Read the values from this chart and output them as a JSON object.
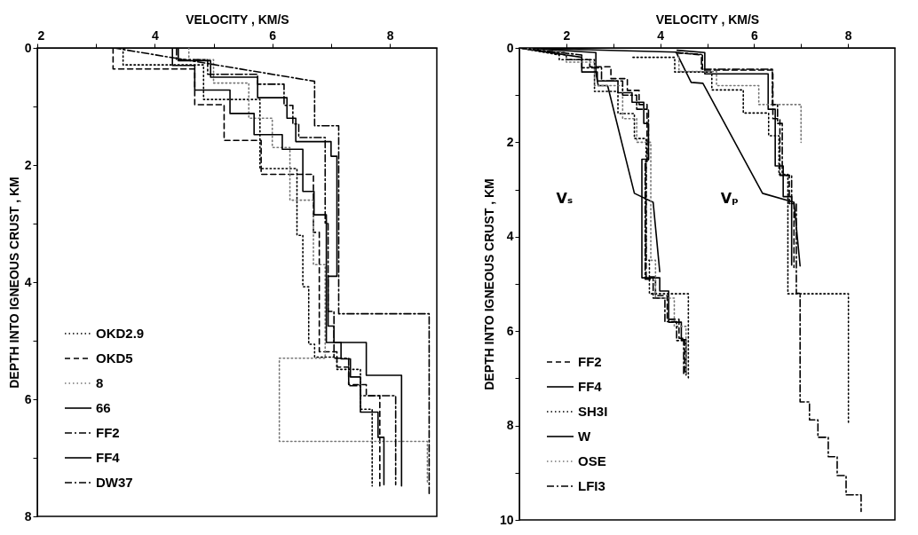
{
  "chart_data": [
    {
      "type": "line",
      "xlabel": "VELOCITY , KM/S",
      "ylabel": "DEPTH INTO IGNEOUS CRUST , KM",
      "xlim": [
        2,
        8.8
      ],
      "ylim": [
        8,
        0
      ],
      "xticks": [
        2,
        {
          "value": 3,
          "label": null
        },
        4,
        {
          "value": 5,
          "label": null
        },
        6,
        {
          "value": 7,
          "label": null
        },
        8
      ],
      "yticks": [
        0,
        {
          "value": 1,
          "label": null
        },
        2,
        {
          "value": 3,
          "label": null
        },
        4,
        {
          "value": 5,
          "label": null
        },
        6,
        {
          "value": 7,
          "label": null
        },
        8
      ],
      "legend": "bottom left",
      "series": [
        {
          "name": "OKD2.9",
          "color": "#000000",
          "line_style": "dotted",
          "x": [
            3.46,
            3.46,
            4.83,
            4.83,
            5.79,
            5.79,
            6.42,
            6.42,
            6.52,
            6.52,
            6.62,
            6.62,
            6.72,
            6.72,
            7.1,
            7.1,
            7.5,
            7.5,
            7.7,
            7.7
          ],
          "values": [
            0,
            0.29,
            0.29,
            0.88,
            0.88,
            2.06,
            2.06,
            3.2,
            3.2,
            4.08,
            4.08,
            5.06,
            5.06,
            5.28,
            5.28,
            5.49,
            5.49,
            6.17,
            6.17,
            7.48
          ]
        },
        {
          "name": "OKD5",
          "color": "#000000",
          "line_style": "dashed",
          "x": [
            3.29,
            3.29,
            4.68,
            4.68,
            5.18,
            5.18,
            5.81,
            5.81,
            6.7,
            6.7,
            6.8,
            6.8,
            7.1,
            7.1,
            7.3,
            7.3,
            7.6,
            7.6,
            7.83,
            7.83
          ],
          "values": [
            0,
            0.36,
            0.36,
            0.97,
            0.97,
            1.58,
            1.58,
            2.16,
            2.16,
            3.15,
            3.15,
            5.19,
            5.19,
            5.45,
            5.45,
            5.75,
            5.75,
            5.94,
            5.94,
            7.48
          ]
        },
        {
          "name": "8",
          "color": "#777777",
          "line_style": "dotted",
          "x": [
            4.58,
            4.58,
            5.0,
            5.0,
            5.6,
            5.6,
            6.0,
            6.0,
            6.3,
            6.3,
            6.7,
            6.7,
            6.9,
            6.9,
            6.12,
            6.12,
            8.64,
            8.64
          ],
          "values": [
            0,
            0.2,
            0.2,
            0.6,
            0.6,
            1.2,
            1.2,
            1.7,
            1.7,
            2.6,
            2.6,
            3.7,
            3.7,
            5.3,
            5.3,
            6.72,
            6.72,
            7.43
          ]
        },
        {
          "name": "66",
          "color": "#000000",
          "line_style": "solid",
          "x": [
            4.3,
            4.3,
            4.68,
            4.68,
            5.28,
            5.28,
            5.69,
            5.69,
            6.17,
            6.17,
            6.52,
            6.52,
            6.71,
            6.71,
            6.92,
            6.92,
            7.6,
            7.6,
            8.2,
            8.2
          ],
          "values": [
            0,
            0.3,
            0.3,
            0.72,
            0.72,
            1.12,
            1.12,
            1.48,
            1.48,
            1.73,
            1.73,
            2.45,
            2.45,
            2.85,
            2.85,
            5.03,
            5.03,
            5.59,
            5.59,
            7.48
          ]
        },
        {
          "name": "FF2",
          "color": "#000000",
          "line_style": "dashdot",
          "x": [
            4.37,
            4.37,
            4.9,
            4.9,
            5.75,
            5.75,
            6.2,
            6.2,
            6.35,
            6.35,
            6.45,
            6.45,
            6.9,
            6.9,
            6.95,
            6.95,
            7.05,
            7.05,
            7.3,
            7.3,
            7.5,
            7.5,
            8.1,
            8.1
          ],
          "values": [
            0,
            0.2,
            0.2,
            0.45,
            0.45,
            0.62,
            0.62,
            0.98,
            0.98,
            1.3,
            1.3,
            1.53,
            1.53,
            3.0,
            3.0,
            4.5,
            4.5,
            5.3,
            5.3,
            5.77,
            5.77,
            5.94,
            5.94,
            7.46
          ]
        },
        {
          "name": "FF4",
          "color": "#000000",
          "line_style": "solid",
          "x": [
            4.4,
            4.4,
            4.95,
            4.95,
            5.75,
            5.75,
            6.25,
            6.25,
            6.4,
            6.4,
            7.0,
            7.0,
            7.1,
            7.1,
            6.95,
            6.95,
            7.05,
            7.05,
            7.17,
            7.17,
            7.33,
            7.33,
            7.5,
            7.5,
            7.8,
            7.8,
            7.9,
            7.9
          ],
          "values": [
            0,
            0.22,
            0.22,
            0.5,
            0.5,
            0.85,
            0.85,
            1.2,
            1.2,
            1.6,
            1.6,
            1.85,
            1.85,
            3.9,
            3.9,
            4.75,
            4.75,
            5.03,
            5.03,
            5.31,
            5.31,
            5.62,
            5.62,
            6.22,
            6.22,
            6.65,
            6.65,
            7.46
          ]
        },
        {
          "name": "DW37",
          "color": "#000000",
          "line_style": "dashdot",
          "x": [
            3.3,
            6.72,
            6.72,
            7.13,
            7.13,
            8.67,
            8.67
          ],
          "values": [
            0,
            0.57,
            1.33,
            1.33,
            4.54,
            4.54,
            7.61
          ]
        }
      ]
    },
    {
      "type": "line",
      "xlabel": "VELOCITY , KM/S",
      "ylabel": "DEPTH INTO IGNEOUS CRUST , KM",
      "xlim": [
        1,
        9
      ],
      "ylim": [
        10,
        0
      ],
      "xticks": [
        2,
        {
          "value": 3,
          "label": null
        },
        4,
        {
          "value": 5,
          "label": null
        },
        6,
        {
          "value": 7,
          "label": null
        },
        8
      ],
      "yticks": [
        0,
        {
          "value": 1,
          "label": null
        },
        2,
        {
          "value": 3,
          "label": null
        },
        4,
        {
          "value": 5,
          "label": null
        },
        6,
        {
          "value": 7,
          "label": null
        },
        8,
        {
          "value": 9,
          "label": null
        },
        10
      ],
      "legend": "bottom left",
      "annotations": [
        "Vₛ",
        "Vₚ"
      ],
      "series": [
        {
          "name": "FF2",
          "color": "#000000",
          "line_style": "dashed",
          "x": [
            1.0,
            2.0,
            2.0,
            2.5,
            2.5,
            2.95,
            2.95,
            3.3,
            3.3,
            3.55,
            3.55,
            3.72,
            3.72,
            3.7,
            3.7,
            3.9,
            3.9,
            4.15,
            4.15,
            4.4,
            4.4,
            4.52,
            4.52,
            null,
            4.34,
            4.9,
            4.9,
            6.4,
            6.4,
            6.55,
            6.55,
            6.75,
            6.75,
            6.85,
            6.85
          ],
          "values": [
            0,
            0.15,
            0.25,
            0.25,
            0.4,
            0.4,
            0.65,
            0.65,
            0.9,
            0.9,
            1.2,
            1.2,
            2.4,
            2.4,
            4.85,
            4.85,
            5.25,
            5.25,
            5.75,
            5.75,
            6.15,
            6.15,
            6.93,
            null,
            0.1,
            0.15,
            0.47,
            0.47,
            1.5,
            1.5,
            2.7,
            2.7,
            3.3,
            3.3,
            4.65
          ]
        },
        {
          "name": "FF4",
          "color": "#000000",
          "line_style": "solid",
          "x": [
            1.0,
            2.33,
            2.33,
            2.66,
            2.66,
            3.1,
            3.1,
            3.4,
            3.4,
            3.65,
            3.65,
            3.75,
            3.75,
            3.61,
            3.61,
            3.99,
            3.99,
            4.18,
            4.18,
            4.45,
            4.45,
            4.55,
            4.55,
            null,
            4.36,
            4.95,
            4.95,
            6.3,
            6.3,
            6.45,
            6.45,
            6.62,
            6.62,
            6.8,
            6.8
          ],
          "values": [
            0,
            0.2,
            0.51,
            0.51,
            0.7,
            0.7,
            0.95,
            0.95,
            1.15,
            1.15,
            1.6,
            1.6,
            2.36,
            2.36,
            4.87,
            4.87,
            5.15,
            5.15,
            5.81,
            5.81,
            6.18,
            6.18,
            6.93,
            null,
            0.05,
            0.1,
            0.55,
            0.55,
            1.3,
            1.3,
            2.5,
            2.5,
            3.15,
            3.15,
            4.6
          ]
        },
        {
          "name": "SH3I",
          "color": "#000000",
          "line_style": "dotted",
          "x": [
            1.0,
            1.85,
            1.85,
            2.6,
            2.6,
            3.1,
            3.1,
            3.45,
            3.45,
            3.7,
            3.7,
            3.77,
            3.77,
            4.6,
            4.6,
            null,
            3.42,
            4.31,
            4.31,
            5.1,
            5.1,
            5.77,
            5.77,
            6.31,
            6.31,
            6.53,
            6.53,
            6.72,
            6.72,
            8.01,
            8.01
          ],
          "values": [
            0,
            0.15,
            0.25,
            0.25,
            0.92,
            0.92,
            1.39,
            1.39,
            1.92,
            1.92,
            4.5,
            4.5,
            5.21,
            5.21,
            6.99,
            null,
            0.2,
            0.2,
            0.51,
            0.51,
            0.89,
            0.89,
            1.38,
            1.38,
            1.86,
            1.86,
            2.68,
            2.68,
            5.21,
            5.21,
            7.97
          ]
        },
        {
          "name": "W",
          "color": "#000000",
          "line_style": "solid",
          "x": [
            1.0,
            2.63,
            2.63,
            2.68,
            2.88,
            3.45,
            3.85,
            3.99,
            null,
            1.0,
            4.34,
            4.66,
            4.91,
            6.18,
            6.85,
            6.98
          ],
          "values": [
            0,
            0.1,
            0.53,
            0.8,
            0.8,
            3.08,
            3.27,
            4.74,
            null,
            0,
            0.09,
            0.73,
            0.75,
            3.08,
            3.27,
            4.62
          ]
        },
        {
          "name": "OSE",
          "color": "#777777",
          "line_style": "dotted",
          "x": [
            1.0,
            2.0,
            2.0,
            2.6,
            2.6,
            3.2,
            3.2,
            3.5,
            3.5,
            3.8,
            3.8,
            3.9,
            3.9,
            4.3,
            4.3,
            4.55,
            4.55,
            null,
            4.4,
            4.4,
            5.2,
            5.2,
            6.1,
            6.1,
            7.0,
            7.0
          ],
          "values": [
            0,
            0.1,
            0.3,
            0.3,
            0.8,
            0.8,
            1.5,
            1.5,
            2.0,
            2.0,
            4.5,
            4.5,
            5.3,
            5.3,
            5.9,
            5.9,
            6.9,
            null,
            0.1,
            0.5,
            0.5,
            0.8,
            0.8,
            1.2,
            1.2,
            2.0
          ]
        },
        {
          "name": "LFI3",
          "color": "#000000",
          "line_style": "dashdot",
          "x": [
            1.0,
            2.33,
            2.33,
            2.75,
            2.75,
            3.2,
            3.2,
            3.5,
            3.5,
            3.75,
            3.75,
            3.68,
            3.68,
            3.85,
            3.85,
            4.1,
            4.1,
            4.35,
            4.35,
            4.5,
            4.5,
            null,
            4.34,
            4.88,
            4.88,
            6.39,
            6.39,
            6.5,
            6.5,
            6.6,
            6.6,
            6.8,
            6.8,
            6.9,
            6.9,
            6.98,
            6.98,
            7.18,
            7.18,
            7.36,
            7.36,
            7.58,
            7.58,
            7.77,
            7.77,
            7.96,
            7.96,
            8.28,
            8.28
          ],
          "values": [
            0,
            0.15,
            0.42,
            0.42,
            0.7,
            0.7,
            1.0,
            1.0,
            1.3,
            1.3,
            2.4,
            2.4,
            4.9,
            4.9,
            5.3,
            5.3,
            5.8,
            5.8,
            6.2,
            6.2,
            6.95,
            null,
            0.1,
            0.14,
            0.45,
            0.45,
            1.2,
            1.2,
            1.6,
            1.6,
            2.7,
            2.7,
            3.3,
            3.3,
            5.2,
            5.2,
            7.5,
            7.5,
            7.88,
            7.88,
            8.25,
            8.25,
            8.66,
            8.66,
            9.06,
            9.06,
            9.47,
            9.47,
            9.82
          ]
        }
      ]
    }
  ]
}
